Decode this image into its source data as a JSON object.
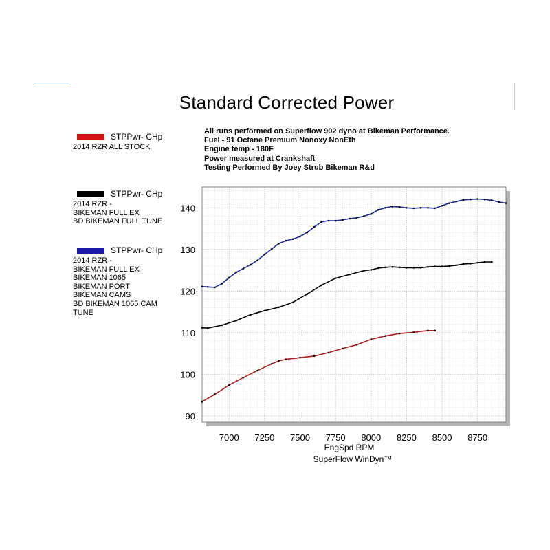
{
  "title": "Standard Corrected Power",
  "notes": [
    "All runs performed on Superflow 902 dyno at Bikeman Performance.",
    "Fuel - 91 Octane Premium Nonoxy NonEth",
    "Engine temp - 180F",
    "Power measured at Crankshaft",
    "Testing Performed By Joey Strub Bikeman R&d"
  ],
  "legend": [
    {
      "label": "STPPwr- CHp",
      "color": "#d01414",
      "lines": [
        "2014 RZR ALL STOCK"
      ]
    },
    {
      "label": "STPPwr- CHp",
      "color": "#000000",
      "lines": [
        "2014 RZR -",
        "BIKEMAN FULL EX",
        "BD BIKEMAN FULL TUNE"
      ]
    },
    {
      "label": "STPPwr- CHp",
      "color": "#1a1aa8",
      "lines": [
        "2014 RZR -",
        "BIKEMAN FULL EX",
        "BIKEMAN 1065",
        "BIKEMAN PORT",
        "BIKEMAN CAMS",
        "BD BIKEMAN 1065 CAM",
        "TUNE"
      ]
    }
  ],
  "chart_data": {
    "type": "line",
    "title": "Standard Corrected Power",
    "xlabel": "EngSpd  RPM",
    "footer": "SuperFlow WinDyn™",
    "xlim": [
      6810,
      8950
    ],
    "ylim": [
      88.5,
      145
    ],
    "xticks": [
      7000,
      7250,
      7500,
      7750,
      8000,
      8250,
      8500,
      8750
    ],
    "yticks": [
      90,
      100,
      110,
      120,
      130,
      140
    ],
    "grid": true,
    "series": [
      {
        "name": "2014 RZR ALL STOCK",
        "color": "#b01c1c",
        "x": [
          6810,
          6900,
          7000,
          7100,
          7200,
          7300,
          7350,
          7400,
          7500,
          7600,
          7700,
          7800,
          7900,
          8000,
          8100,
          8200,
          8300,
          8400,
          8450
        ],
        "y": [
          93.4,
          95.2,
          97.4,
          99.2,
          100.9,
          102.5,
          103.2,
          103.6,
          104.0,
          104.4,
          105.2,
          106.2,
          107.1,
          108.4,
          109.2,
          109.8,
          110.1,
          110.5,
          110.5
        ]
      },
      {
        "name": "2014 RZR - BIKEMAN FULL EX / BD BIKEMAN FULL TUNE",
        "color": "#000000",
        "x": [
          6810,
          6850,
          6950,
          7050,
          7150,
          7250,
          7350,
          7450,
          7550,
          7650,
          7750,
          7850,
          7950,
          8000,
          8050,
          8100,
          8150,
          8200,
          8250,
          8300,
          8350,
          8400,
          8450,
          8500,
          8550,
          8600,
          8650,
          8700,
          8750,
          8800,
          8850
        ],
        "y": [
          111.2,
          111.1,
          111.8,
          112.9,
          114.3,
          115.3,
          116.1,
          117.3,
          119.3,
          121.4,
          123.1,
          124.0,
          124.9,
          125.1,
          125.5,
          125.7,
          125.8,
          125.7,
          125.6,
          125.6,
          125.6,
          125.8,
          125.9,
          125.9,
          126.0,
          126.2,
          126.5,
          126.6,
          126.8,
          127.0,
          127.0
        ]
      },
      {
        "name": "2014 RZR - BIKEMAN FULL EX / 1065 / PORT / CAMS / 1065 CAM TUNE",
        "color": "#1a2aa0",
        "x": [
          6810,
          6850,
          6900,
          6950,
          7000,
          7050,
          7100,
          7150,
          7200,
          7250,
          7300,
          7350,
          7400,
          7450,
          7500,
          7550,
          7600,
          7650,
          7700,
          7750,
          7800,
          7850,
          7900,
          7950,
          8000,
          8050,
          8100,
          8150,
          8200,
          8250,
          8300,
          8350,
          8400,
          8450,
          8500,
          8550,
          8600,
          8650,
          8700,
          8750,
          8800,
          8850,
          8900,
          8950
        ],
        "y": [
          121.1,
          121.0,
          120.9,
          121.8,
          123.2,
          124.5,
          125.4,
          126.3,
          127.4,
          128.8,
          130.1,
          131.4,
          132.1,
          132.5,
          133.1,
          134.1,
          135.4,
          136.6,
          136.9,
          136.9,
          137.1,
          137.4,
          137.6,
          138.0,
          138.5,
          139.5,
          140.0,
          140.3,
          140.2,
          140.0,
          139.9,
          140.0,
          140.0,
          139.9,
          140.5,
          141.1,
          141.5,
          141.9,
          142.0,
          142.1,
          142.0,
          141.8,
          141.4,
          141.1
        ]
      }
    ]
  }
}
